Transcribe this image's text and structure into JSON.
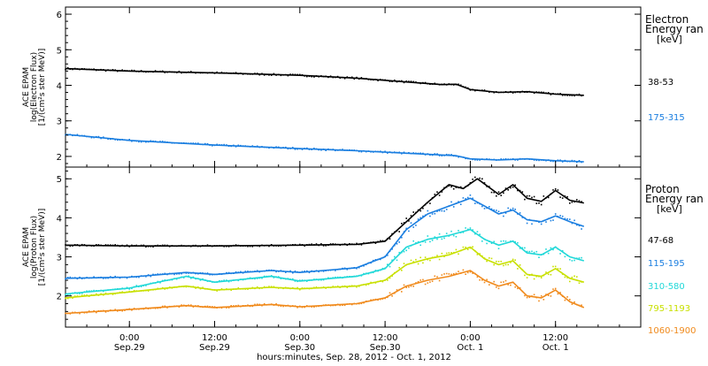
{
  "xaxis": {
    "title": "hours:minutes, Sep. 28, 2012 - Oct. 1, 2012",
    "ticks": [
      {
        "t": 24,
        "time": "0:00",
        "date": "Sep.29"
      },
      {
        "t": 36,
        "time": "12:00",
        "date": "Sep.29"
      },
      {
        "t": 48,
        "time": "0:00",
        "date": "Sep.30"
      },
      {
        "t": 60,
        "time": "12:00",
        "date": "Sep.30"
      },
      {
        "t": 72,
        "time": "0:00",
        "date": "Oct. 1"
      },
      {
        "t": 84,
        "time": "12:00",
        "date": "Oct. 1"
      }
    ]
  },
  "chart_data": [
    {
      "type": "scatter",
      "panel": "electron",
      "ylabel_lines": [
        "ACE EPAM",
        "log(Electron Flux)",
        "[1/(cm²s ster MeV)]"
      ],
      "legend_title": [
        "Electron",
        "Energy ran",
        "[keV]"
      ],
      "x_unit": "hours since Sep. 28, 2012 00:00",
      "xlim": [
        15,
        96
      ],
      "ylim": [
        1.7,
        6.2
      ],
      "yticks": [
        2,
        3,
        4,
        5,
        6
      ],
      "series": [
        {
          "name": "38-53",
          "color": "#000000",
          "x": [
            15,
            24,
            36,
            48,
            56,
            64,
            68,
            70,
            72,
            76,
            80,
            84,
            88
          ],
          "y": [
            4.47,
            4.4,
            4.35,
            4.28,
            4.2,
            4.08,
            4.02,
            4.03,
            3.88,
            3.8,
            3.82,
            3.75,
            3.72
          ]
        },
        {
          "name": "175-315",
          "color": "#1a7ee0",
          "x": [
            15,
            24,
            36,
            48,
            56,
            64,
            70,
            72,
            76,
            80,
            84,
            88
          ],
          "y": [
            2.62,
            2.45,
            2.32,
            2.22,
            2.16,
            2.08,
            2.02,
            1.93,
            1.9,
            1.93,
            1.88,
            1.85
          ]
        }
      ]
    },
    {
      "type": "scatter",
      "panel": "proton",
      "ylabel_lines": [
        "ACE EPAM",
        "log(Proton Flux)",
        "[1/(cm²s ster MeV)]"
      ],
      "legend_title": [
        "Proton",
        "Energy ran",
        "[keV]"
      ],
      "x_unit": "hours since Sep. 28, 2012 00:00",
      "xlim": [
        15,
        96
      ],
      "ylim": [
        1.2,
        5.3
      ],
      "yticks": [
        2,
        3,
        4,
        5
      ],
      "series": [
        {
          "name": "47-68",
          "color": "#000000",
          "x": [
            15,
            24,
            36,
            48,
            56,
            60,
            63,
            66,
            69,
            71,
            73,
            76,
            78,
            80,
            82,
            84,
            86,
            88
          ],
          "y": [
            3.3,
            3.28,
            3.28,
            3.3,
            3.32,
            3.4,
            3.9,
            4.4,
            4.85,
            4.75,
            5.0,
            4.6,
            4.85,
            4.5,
            4.42,
            4.7,
            4.45,
            4.38
          ]
        },
        {
          "name": "115-195",
          "color": "#1a7ee0",
          "x": [
            15,
            24,
            32,
            36,
            44,
            48,
            56,
            60,
            63,
            66,
            69,
            72,
            74,
            76,
            78,
            80,
            82,
            84,
            86,
            88
          ],
          "y": [
            2.45,
            2.48,
            2.6,
            2.55,
            2.65,
            2.6,
            2.72,
            3.0,
            3.7,
            4.1,
            4.3,
            4.5,
            4.3,
            4.1,
            4.2,
            3.95,
            3.9,
            4.05,
            3.9,
            3.78
          ]
        },
        {
          "name": "310-580",
          "color": "#20d8d8",
          "x": [
            15,
            24,
            32,
            36,
            44,
            48,
            56,
            60,
            63,
            66,
            69,
            72,
            74,
            76,
            78,
            80,
            82,
            84,
            86,
            88
          ],
          "y": [
            2.05,
            2.2,
            2.5,
            2.35,
            2.5,
            2.38,
            2.5,
            2.7,
            3.25,
            3.45,
            3.55,
            3.7,
            3.45,
            3.3,
            3.4,
            3.1,
            3.05,
            3.25,
            3.0,
            2.9
          ]
        },
        {
          "name": "795-1193",
          "color": "#c8e000",
          "x": [
            15,
            24,
            32,
            36,
            44,
            48,
            56,
            60,
            63,
            66,
            69,
            72,
            74,
            76,
            78,
            80,
            82,
            84,
            86,
            88
          ],
          "y": [
            1.95,
            2.1,
            2.25,
            2.15,
            2.22,
            2.18,
            2.25,
            2.4,
            2.8,
            2.95,
            3.05,
            3.25,
            2.95,
            2.8,
            2.9,
            2.55,
            2.5,
            2.7,
            2.45,
            2.35
          ]
        },
        {
          "name": "1060-1900",
          "color": "#f08a1c",
          "x": [
            15,
            24,
            32,
            36,
            44,
            48,
            56,
            60,
            63,
            66,
            69,
            72,
            74,
            76,
            78,
            80,
            82,
            84,
            86,
            88
          ],
          "y": [
            1.55,
            1.65,
            1.75,
            1.7,
            1.78,
            1.72,
            1.8,
            1.95,
            2.25,
            2.4,
            2.5,
            2.65,
            2.4,
            2.25,
            2.35,
            2.0,
            1.95,
            2.15,
            1.85,
            1.7
          ]
        }
      ]
    }
  ]
}
